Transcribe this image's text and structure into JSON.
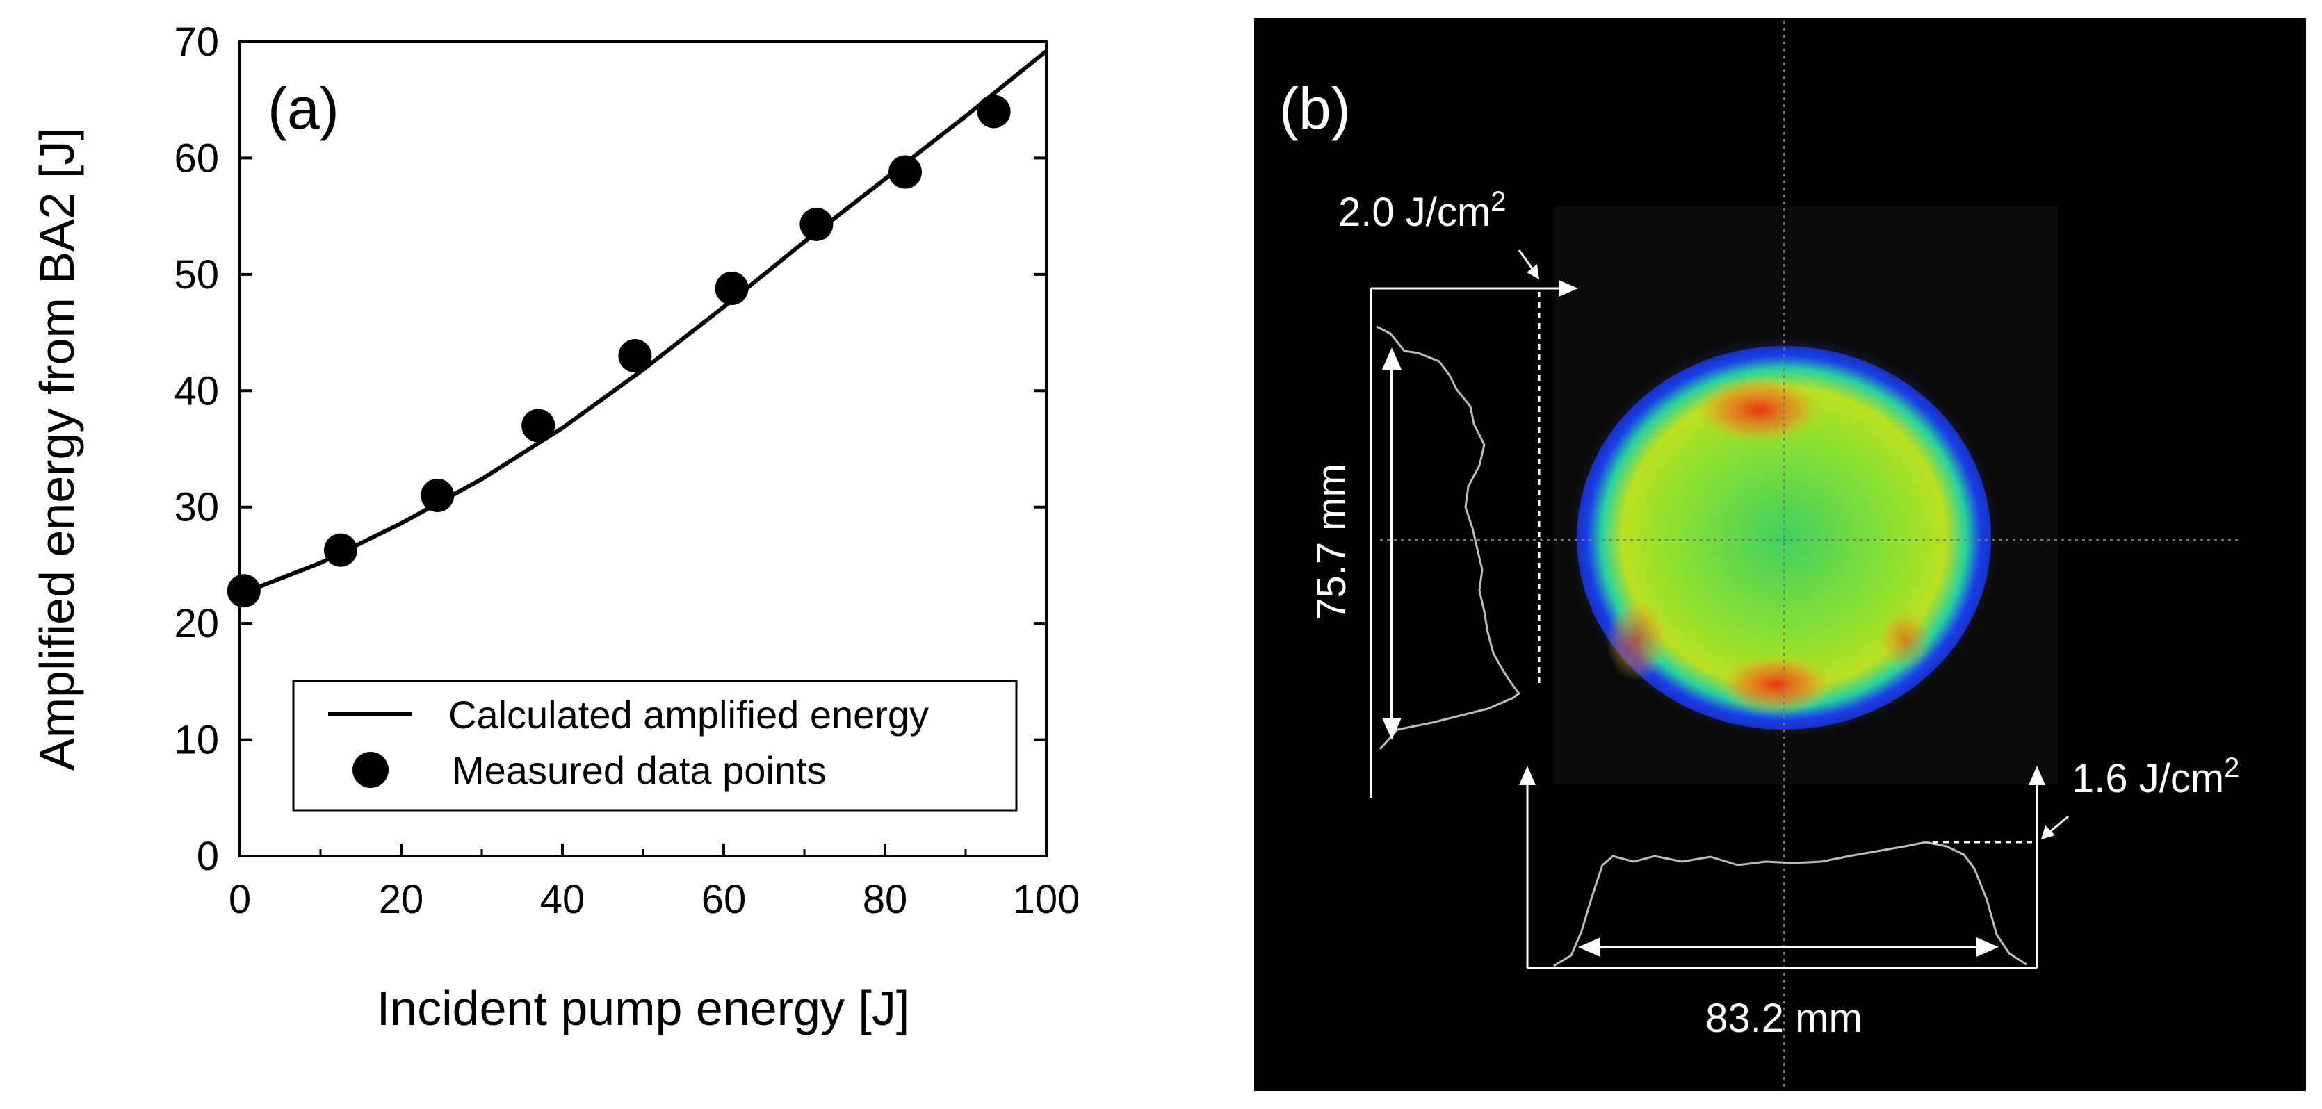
{
  "chart_data": [
    {
      "type": "line",
      "panel_label": "(a)",
      "xlabel": "Incident pump energy [J]",
      "ylabel": "Amplified energy from BA2 [J]",
      "xlim": [
        0,
        100
      ],
      "ylim": [
        0,
        70
      ],
      "xticks": [
        0,
        20,
        40,
        60,
        80,
        100
      ],
      "yticks": [
        0,
        10,
        20,
        30,
        40,
        50,
        60,
        70
      ],
      "grid": false,
      "legend_position": "bottom-right",
      "series": [
        {
          "name": "Calculated amplified energy",
          "style": "line",
          "color": "#000000",
          "x": [
            0,
            10,
            20,
            30,
            40,
            50,
            60,
            70,
            80,
            90,
            100
          ],
          "y": [
            22.5,
            25.2,
            28.6,
            32.4,
            36.8,
            41.8,
            47.2,
            52.8,
            58.2,
            63.6,
            69.2
          ]
        },
        {
          "name": "Measured data points",
          "style": "scatter",
          "color": "#000000",
          "x": [
            0.5,
            12.5,
            24.5,
            37,
            49,
            61,
            71.5,
            82.5,
            93.5
          ],
          "y": [
            22.8,
            26.3,
            31,
            37,
            43,
            48.8,
            54.3,
            58.8,
            64
          ]
        }
      ]
    },
    {
      "type": "other",
      "panel_label": "(b)",
      "annotations": {
        "vertical_profile_peak": "2.0 J/cm",
        "horizontal_profile_peak": "1.6 J/cm",
        "unit_exponent": "2",
        "vertical_size": "75.7 mm",
        "horizontal_size": "83.2 mm"
      }
    }
  ],
  "colors": {
    "beam_background": "#000000",
    "beam_outer": "#2030e0",
    "beam_mid": "#28d090",
    "beam_inner": "#9ee020",
    "hotspot": "#ee3010"
  }
}
